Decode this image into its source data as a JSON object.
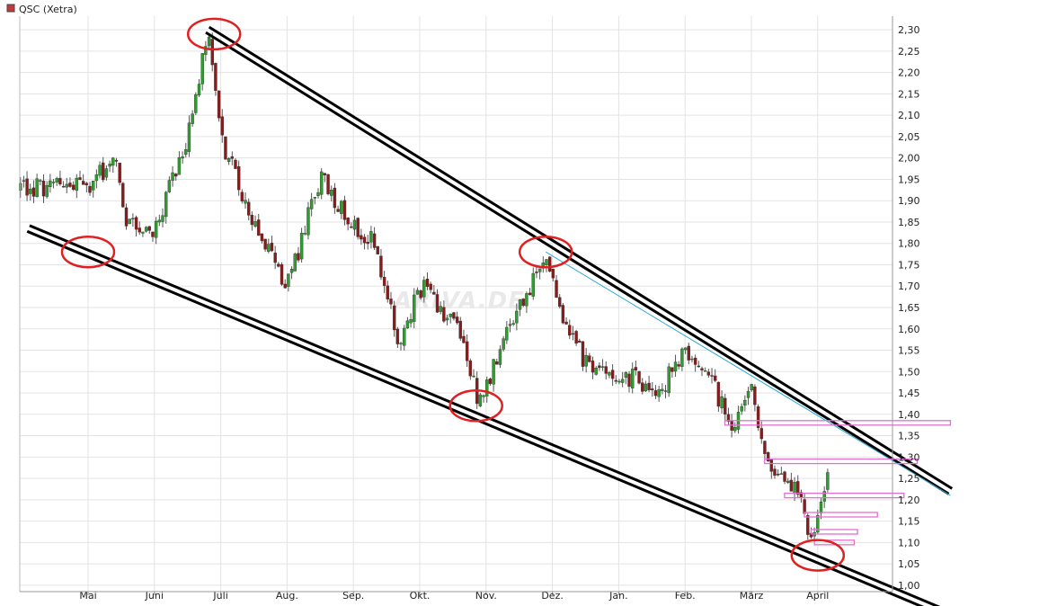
{
  "chart_data": {
    "type": "candlestick",
    "legend": {
      "label": "QSC (Xetra)",
      "color": "#c0393b"
    },
    "watermark": "ARIVA.DE",
    "y_axis": {
      "side": "right",
      "range": [
        0.985,
        2.315
      ],
      "ticks": [
        "2,30",
        "2,25",
        "2,20",
        "2,15",
        "2,10",
        "2,05",
        "2,00",
        "1,95",
        "1,90",
        "1,85",
        "1,80",
        "1,75",
        "1,70",
        "1,65",
        "1,60",
        "1,55",
        "1,50",
        "1,45",
        "1,40",
        "1,35",
        "1,30",
        "1,25",
        "1,20",
        "1,15",
        "1,10",
        "1,05",
        "1,00"
      ]
    },
    "x_axis": {
      "months": [
        "Mai",
        "Juni",
        "Juli",
        "Aug.",
        "Sep.",
        "Okt.",
        "Nov.",
        "Dez.",
        "Jan.",
        "Feb.",
        "März",
        "April"
      ]
    },
    "grid": true,
    "colors": {
      "up": "#2e9e2e",
      "down": "#8b1a1a",
      "trend": "#000000",
      "target_line": "#2aa8d8",
      "zone": "#e070d0",
      "circle": "#e02020"
    },
    "price_path_keypoints": [
      {
        "t": 0.0,
        "p": 1.93
      },
      {
        "t": 0.4,
        "p": 2.0
      },
      {
        "t": 0.6,
        "p": 1.84
      },
      {
        "t": 1.0,
        "p": 1.83
      },
      {
        "t": 1.5,
        "p": 2.05
      },
      {
        "t": 1.8,
        "p": 2.29
      },
      {
        "t": 2.0,
        "p": 2.05
      },
      {
        "t": 2.5,
        "p": 1.85
      },
      {
        "t": 3.0,
        "p": 1.7
      },
      {
        "t": 3.5,
        "p": 1.95
      },
      {
        "t": 4.0,
        "p": 1.85
      },
      {
        "t": 4.3,
        "p": 1.8
      },
      {
        "t": 4.7,
        "p": 1.55
      },
      {
        "t": 5.0,
        "p": 1.7
      },
      {
        "t": 5.6,
        "p": 1.6
      },
      {
        "t": 5.9,
        "p": 1.42
      },
      {
        "t": 6.4,
        "p": 1.62
      },
      {
        "t": 6.9,
        "p": 1.78
      },
      {
        "t": 7.2,
        "p": 1.6
      },
      {
        "t": 7.6,
        "p": 1.5
      },
      {
        "t": 8.0,
        "p": 1.5
      },
      {
        "t": 8.6,
        "p": 1.45
      },
      {
        "t": 9.0,
        "p": 1.55
      },
      {
        "t": 9.3,
        "p": 1.5
      },
      {
        "t": 9.7,
        "p": 1.38
      },
      {
        "t": 10.0,
        "p": 1.45
      },
      {
        "t": 10.3,
        "p": 1.25
      },
      {
        "t": 10.7,
        "p": 1.22
      },
      {
        "t": 10.9,
        "p": 1.1
      },
      {
        "t": 11.0,
        "p": 1.16
      },
      {
        "t": 11.15,
        "p": 1.26
      }
    ],
    "trend_channel": [
      {
        "name": "upper",
        "from": {
          "t": 1.8,
          "p": 2.3
        },
        "to": {
          "t": 13.0,
          "p": 1.22
        }
      },
      {
        "name": "lower",
        "from": {
          "t": -0.9,
          "p": 1.835
        },
        "to": {
          "t": 13.0,
          "p": 0.93
        }
      }
    ],
    "support_lines": [
      {
        "from": {
          "t": 6.9,
          "p": 1.78
        },
        "to": {
          "t": 13.0,
          "p": 1.21
        }
      }
    ],
    "zones": [
      {
        "p": 1.38,
        "t_from": 9.6,
        "t_to": 13.0
      },
      {
        "p": 1.29,
        "t_from": 10.2,
        "t_to": 12.5
      },
      {
        "p": 1.21,
        "t_from": 10.5,
        "t_to": 12.3
      },
      {
        "p": 1.165,
        "t_from": 10.8,
        "t_to": 11.9
      },
      {
        "p": 1.125,
        "t_from": 10.9,
        "t_to": 11.6
      },
      {
        "p": 1.1,
        "t_from": 10.95,
        "t_to": 11.55
      }
    ],
    "highlights": [
      {
        "t": 0.0,
        "p": 1.78
      },
      {
        "t": 1.9,
        "p": 2.29
      },
      {
        "t": 6.9,
        "p": 1.78
      },
      {
        "t": 5.85,
        "p": 1.42
      },
      {
        "t": 11.0,
        "p": 1.07
      }
    ]
  }
}
